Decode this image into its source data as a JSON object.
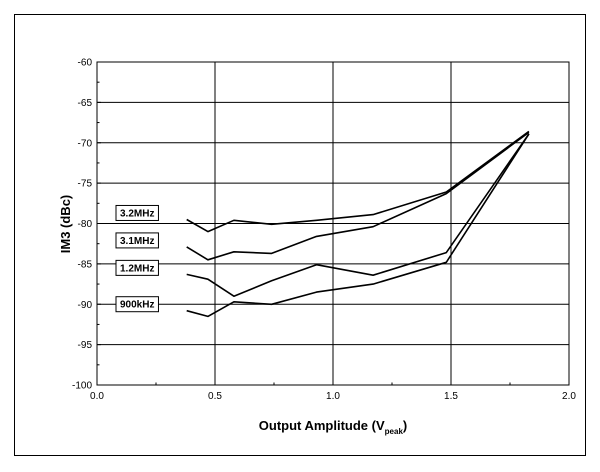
{
  "chart_data": {
    "type": "line",
    "title": "",
    "xlabel_main": "Output Amplitude (V",
    "xlabel_sub": "peak",
    "xlabel_close": ")",
    "ylabel": "IM3 (dBc)",
    "xlim": [
      0.0,
      2.0
    ],
    "ylim": [
      -100,
      -60
    ],
    "x_ticks": [
      "0.0",
      "0.5",
      "1.0",
      "1.5",
      "2.0"
    ],
    "y_ticks": [
      "-60",
      "-65",
      "-70",
      "-75",
      "-80",
      "-85",
      "-90",
      "-95",
      "-100"
    ],
    "grid": true,
    "legend_placement": "left, next to series starts",
    "series": [
      {
        "name": "3.2MHz",
        "points": [
          [
            0.38,
            -79.5
          ],
          [
            0.47,
            -81.0
          ],
          [
            0.58,
            -79.6
          ],
          [
            0.74,
            -80.1
          ],
          [
            0.93,
            -79.6
          ],
          [
            1.17,
            -78.9
          ],
          [
            1.48,
            -76.1
          ],
          [
            1.83,
            -68.6
          ]
        ]
      },
      {
        "name": "3.1MHz",
        "points": [
          [
            0.38,
            -82.9
          ],
          [
            0.47,
            -84.5
          ],
          [
            0.58,
            -83.5
          ],
          [
            0.74,
            -83.7
          ],
          [
            0.93,
            -81.6
          ],
          [
            1.17,
            -80.4
          ],
          [
            1.48,
            -76.3
          ],
          [
            1.83,
            -68.7
          ]
        ]
      },
      {
        "name": "1.2MHz",
        "points": [
          [
            0.38,
            -86.3
          ],
          [
            0.47,
            -86.9
          ],
          [
            0.58,
            -89.0
          ],
          [
            0.74,
            -87.1
          ],
          [
            0.93,
            -85.1
          ],
          [
            1.17,
            -86.4
          ],
          [
            1.48,
            -83.6
          ],
          [
            1.83,
            -68.9
          ]
        ]
      },
      {
        "name": "900kHz",
        "points": [
          [
            0.38,
            -90.8
          ],
          [
            0.47,
            -91.5
          ],
          [
            0.58,
            -89.7
          ],
          [
            0.74,
            -90.0
          ],
          [
            0.93,
            -88.5
          ],
          [
            1.17,
            -87.5
          ],
          [
            1.48,
            -84.8
          ],
          [
            1.83,
            -68.9
          ]
        ]
      }
    ]
  }
}
